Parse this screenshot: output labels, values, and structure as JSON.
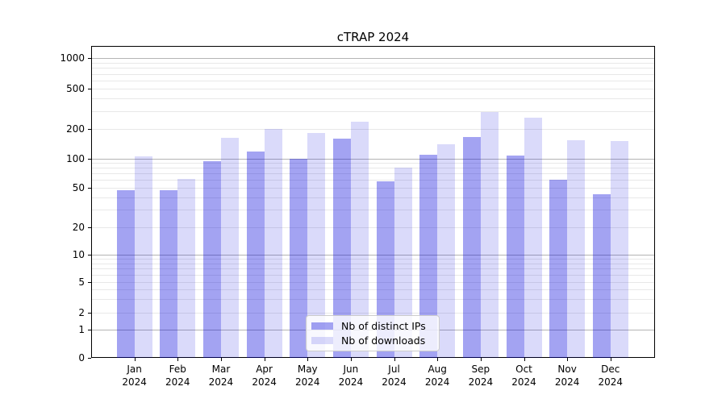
{
  "title": "cTRAP 2024",
  "chart_data": {
    "type": "bar",
    "title": "cTRAP 2024",
    "categories": [
      "Jan 2024",
      "Feb 2024",
      "Mar 2024",
      "Apr 2024",
      "May 2024",
      "Jun 2024",
      "Jul 2024",
      "Aug 2024",
      "Sep 2024",
      "Oct 2024",
      "Nov 2024",
      "Dec 2024"
    ],
    "series": [
      {
        "name": "Nb of distinct IPs",
        "values": [
          47,
          47,
          93,
          118,
          100,
          158,
          58,
          108,
          163,
          106,
          61,
          43
        ]
      },
      {
        "name": "Nb of downloads",
        "values": [
          105,
          62,
          160,
          200,
          180,
          234,
          80,
          138,
          290,
          255,
          152,
          150
        ]
      }
    ],
    "xlabel": "",
    "ylabel": "",
    "yscale": "symlog",
    "yticks": [
      0,
      1,
      2,
      5,
      10,
      20,
      50,
      100,
      200,
      500,
      1000
    ],
    "ylim": [
      0,
      1300
    ],
    "grid": "horizontal major and minor gridlines",
    "legend_position": "lower center inside plot"
  },
  "colors": {
    "bar_ips": "rgba(0,0,220,0.36)",
    "bar_downloads": "rgba(0,0,220,0.145)",
    "grid_major": "#b4b4b4",
    "grid_minor": "#e8e8e8",
    "spine": "#000000",
    "text": "#000000"
  }
}
